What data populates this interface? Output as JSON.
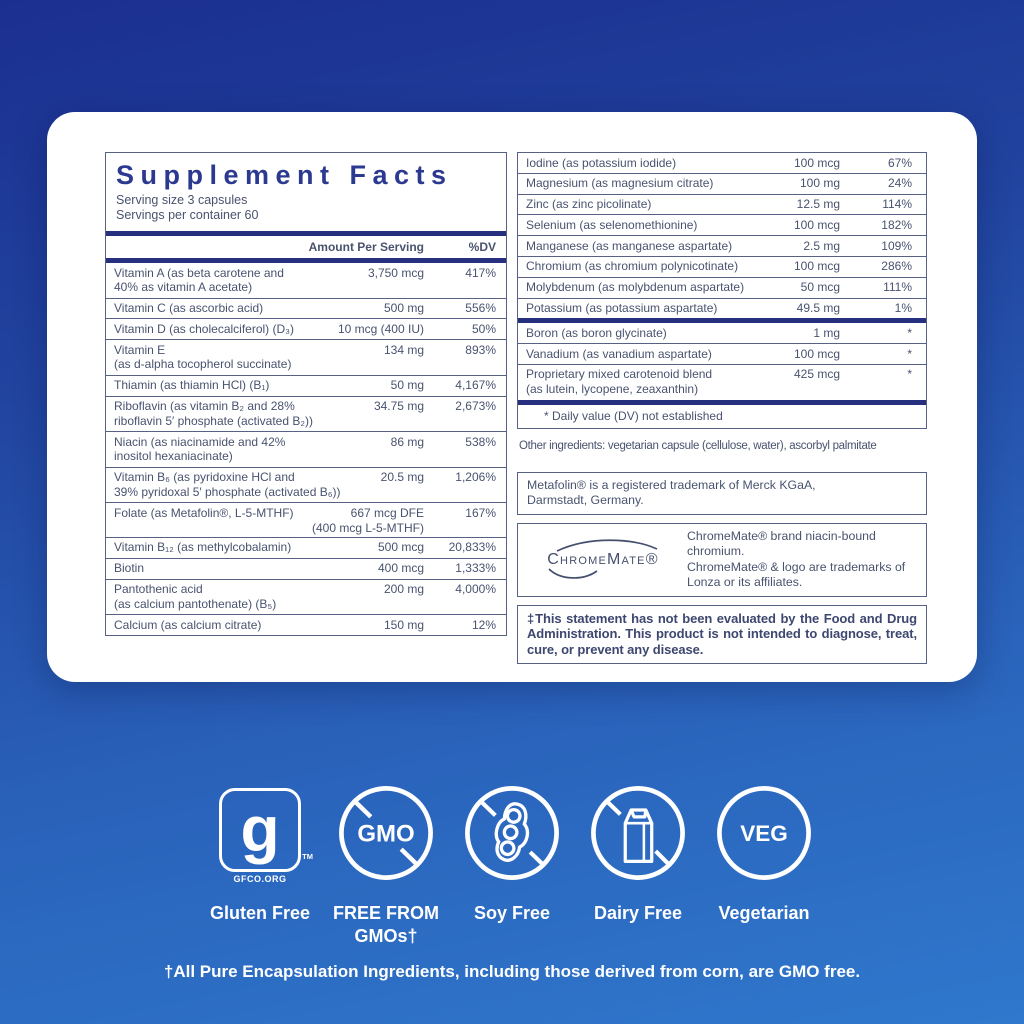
{
  "colors": {
    "navy": "#2b3990",
    "bar": "#27307f",
    "ink": "#49536f",
    "hairline": "#576181",
    "bg_top": "#1b2f90",
    "bg_bottom": "#2f78cd",
    "card": "#ffffff"
  },
  "label": {
    "title": "Supplement Facts",
    "serving_size": "Serving size 3 capsules",
    "servings_per_container": "Servings per container  60",
    "columns": {
      "amount": "Amount Per Serving",
      "dv": "%DV"
    },
    "left_rows": [
      {
        "name": "Vitamin A (as beta carotene and\n40% as vitamin A acetate)",
        "amount": "3,750 mcg",
        "dv": "417%"
      },
      {
        "name": "Vitamin C (as ascorbic acid)",
        "amount": "500 mg",
        "dv": "556%"
      },
      {
        "name": "Vitamin D (as cholecalciferol) (D₃)",
        "amount": "10 mcg (400 IU)",
        "dv": "50%"
      },
      {
        "name": "Vitamin E\n(as d-alpha tocopherol succinate)",
        "amount": "134 mg",
        "dv": "893%"
      },
      {
        "name": "Thiamin (as thiamin HCl) (B₁)",
        "amount": "50 mg",
        "dv": "4,167%"
      },
      {
        "name": "Riboflavin (as vitamin B₂ and 28%\nriboflavin 5′ phosphate (activated B₂))",
        "amount": "34.75 mg",
        "dv": "2,673%"
      },
      {
        "name": "Niacin (as niacinamide and 42%\ninositol hexaniacinate)",
        "amount": "86 mg",
        "dv": "538%"
      },
      {
        "name": "Vitamin B₆ (as pyridoxine HCl and\n39% pyridoxal 5′ phosphate (activated B₆))",
        "amount": "20.5 mg",
        "dv": "1,206%"
      },
      {
        "name": "Folate (as Metafolin®, L-5-MTHF)",
        "amount": "667 mcg DFE\n(400 mcg L-5-MTHF)",
        "dv": "167%"
      },
      {
        "name": "Vitamin B₁₂ (as methylcobalamin)",
        "amount": "500 mcg",
        "dv": "20,833%"
      },
      {
        "name": "Biotin",
        "amount": "400 mcg",
        "dv": "1,333%"
      },
      {
        "name": "Pantothenic acid\n(as calcium pantothenate) (B₅)",
        "amount": "200 mg",
        "dv": "4,000%"
      },
      {
        "name": "Calcium (as calcium citrate)",
        "amount": "150 mg",
        "dv": "12%"
      }
    ],
    "right_rows": [
      {
        "name": "Iodine (as potassium iodide)",
        "amount": "100 mcg",
        "dv": "67%"
      },
      {
        "name": "Magnesium (as magnesium citrate)",
        "amount": "100 mg",
        "dv": "24%"
      },
      {
        "name": "Zinc (as zinc picolinate)",
        "amount": "12.5 mg",
        "dv": "114%"
      },
      {
        "name": "Selenium (as selenomethionine)",
        "amount": "100 mcg",
        "dv": "182%"
      },
      {
        "name": "Manganese (as manganese aspartate)",
        "amount": "2.5 mg",
        "dv": "109%"
      },
      {
        "name": "Chromium (as chromium polynicotinate)",
        "amount": "100 mcg",
        "dv": "286%"
      },
      {
        "name": "Molybdenum (as molybdenum aspartate)",
        "amount": "50 mcg",
        "dv": "111%"
      },
      {
        "name": "Potassium (as potassium aspartate)",
        "amount": "49.5 mg",
        "dv": "1%"
      }
    ],
    "right_rows_no_dv": [
      {
        "name": "Boron (as boron glycinate)",
        "amount": "1 mg",
        "dv": "*"
      },
      {
        "name": "Vanadium (as vanadium aspartate)",
        "amount": "100 mcg",
        "dv": "*"
      },
      {
        "name": "Proprietary mixed carotenoid blend\n(as lutein, lycopene, zeaxanthin)",
        "amount": "425 mcg",
        "dv": "*"
      }
    ],
    "dv_footnote": "*   Daily value (DV) not established",
    "other_ingredients": "Other ingredients: vegetarian capsule (cellulose, water), ascorbyl palmitate",
    "metafolin_note": "Metafolin® is a registered trademark of Merck KGaA,\nDarmstadt, Germany.",
    "chromemate": {
      "wordmark": "ChromeMate®",
      "note": "ChromeMate® brand niacin-bound chromium.\nChromeMate® & logo are trademarks of\nLonza or its affiliates."
    },
    "fda_note": "‡This statement has not been evaluated by the Food and Drug Administration. This product is not intended to diagnose, treat, cure, or prevent any disease."
  },
  "badges": [
    {
      "id": "gluten-free",
      "label": "Gluten Free",
      "logo_letter": "g",
      "logo_caption": "GFCO.ORG",
      "tm": "TM"
    },
    {
      "id": "gmo-free",
      "label": "FREE FROM\nGMOs†",
      "circle_text": "GMO"
    },
    {
      "id": "soy-free",
      "label": "Soy Free"
    },
    {
      "id": "dairy-free",
      "label": "Dairy Free"
    },
    {
      "id": "vegetarian",
      "label": "Vegetarian",
      "circle_text": "VEG"
    }
  ],
  "page": {
    "footer": "†All Pure Encapsulation Ingredients, including those derived from corn, are GMO free."
  }
}
